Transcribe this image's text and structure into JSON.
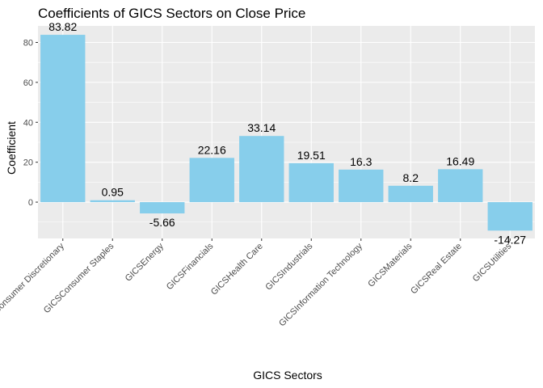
{
  "chart_data": {
    "type": "bar",
    "title": "Coefficients of GICS Sectors on Close Price",
    "xlabel": "GICS Sectors",
    "ylabel": "Coefficient",
    "categories": [
      "Consumer Discretionary",
      "GICSConsumer Staples",
      "GICSEnergy",
      "GICSFinancials",
      "GICSHealth Care",
      "GICSIndustrials",
      "GICSInformation Technology",
      "GICSMaterials",
      "GICSReal Estate",
      "GICSUtilities"
    ],
    "values": [
      83.82,
      0.95,
      -5.66,
      22.16,
      33.14,
      19.51,
      16.3,
      8.2,
      16.49,
      -14.27
    ],
    "value_labels": [
      "83.82",
      "0.95",
      "-5.66",
      "22.16",
      "33.14",
      "19.51",
      "16.3",
      "8.2",
      "16.49",
      "-14.27"
    ],
    "ylim": [
      -18.2,
      88.3
    ],
    "yticks": [
      0,
      20,
      40,
      60,
      80
    ],
    "ytick_labels": [
      "0",
      "20",
      "40",
      "60",
      "80"
    ],
    "grid": true,
    "legend": "none",
    "colors": {
      "bar": "#87CEEB",
      "panel": "#EBEBEB",
      "grid": "#FFFFFF"
    }
  }
}
